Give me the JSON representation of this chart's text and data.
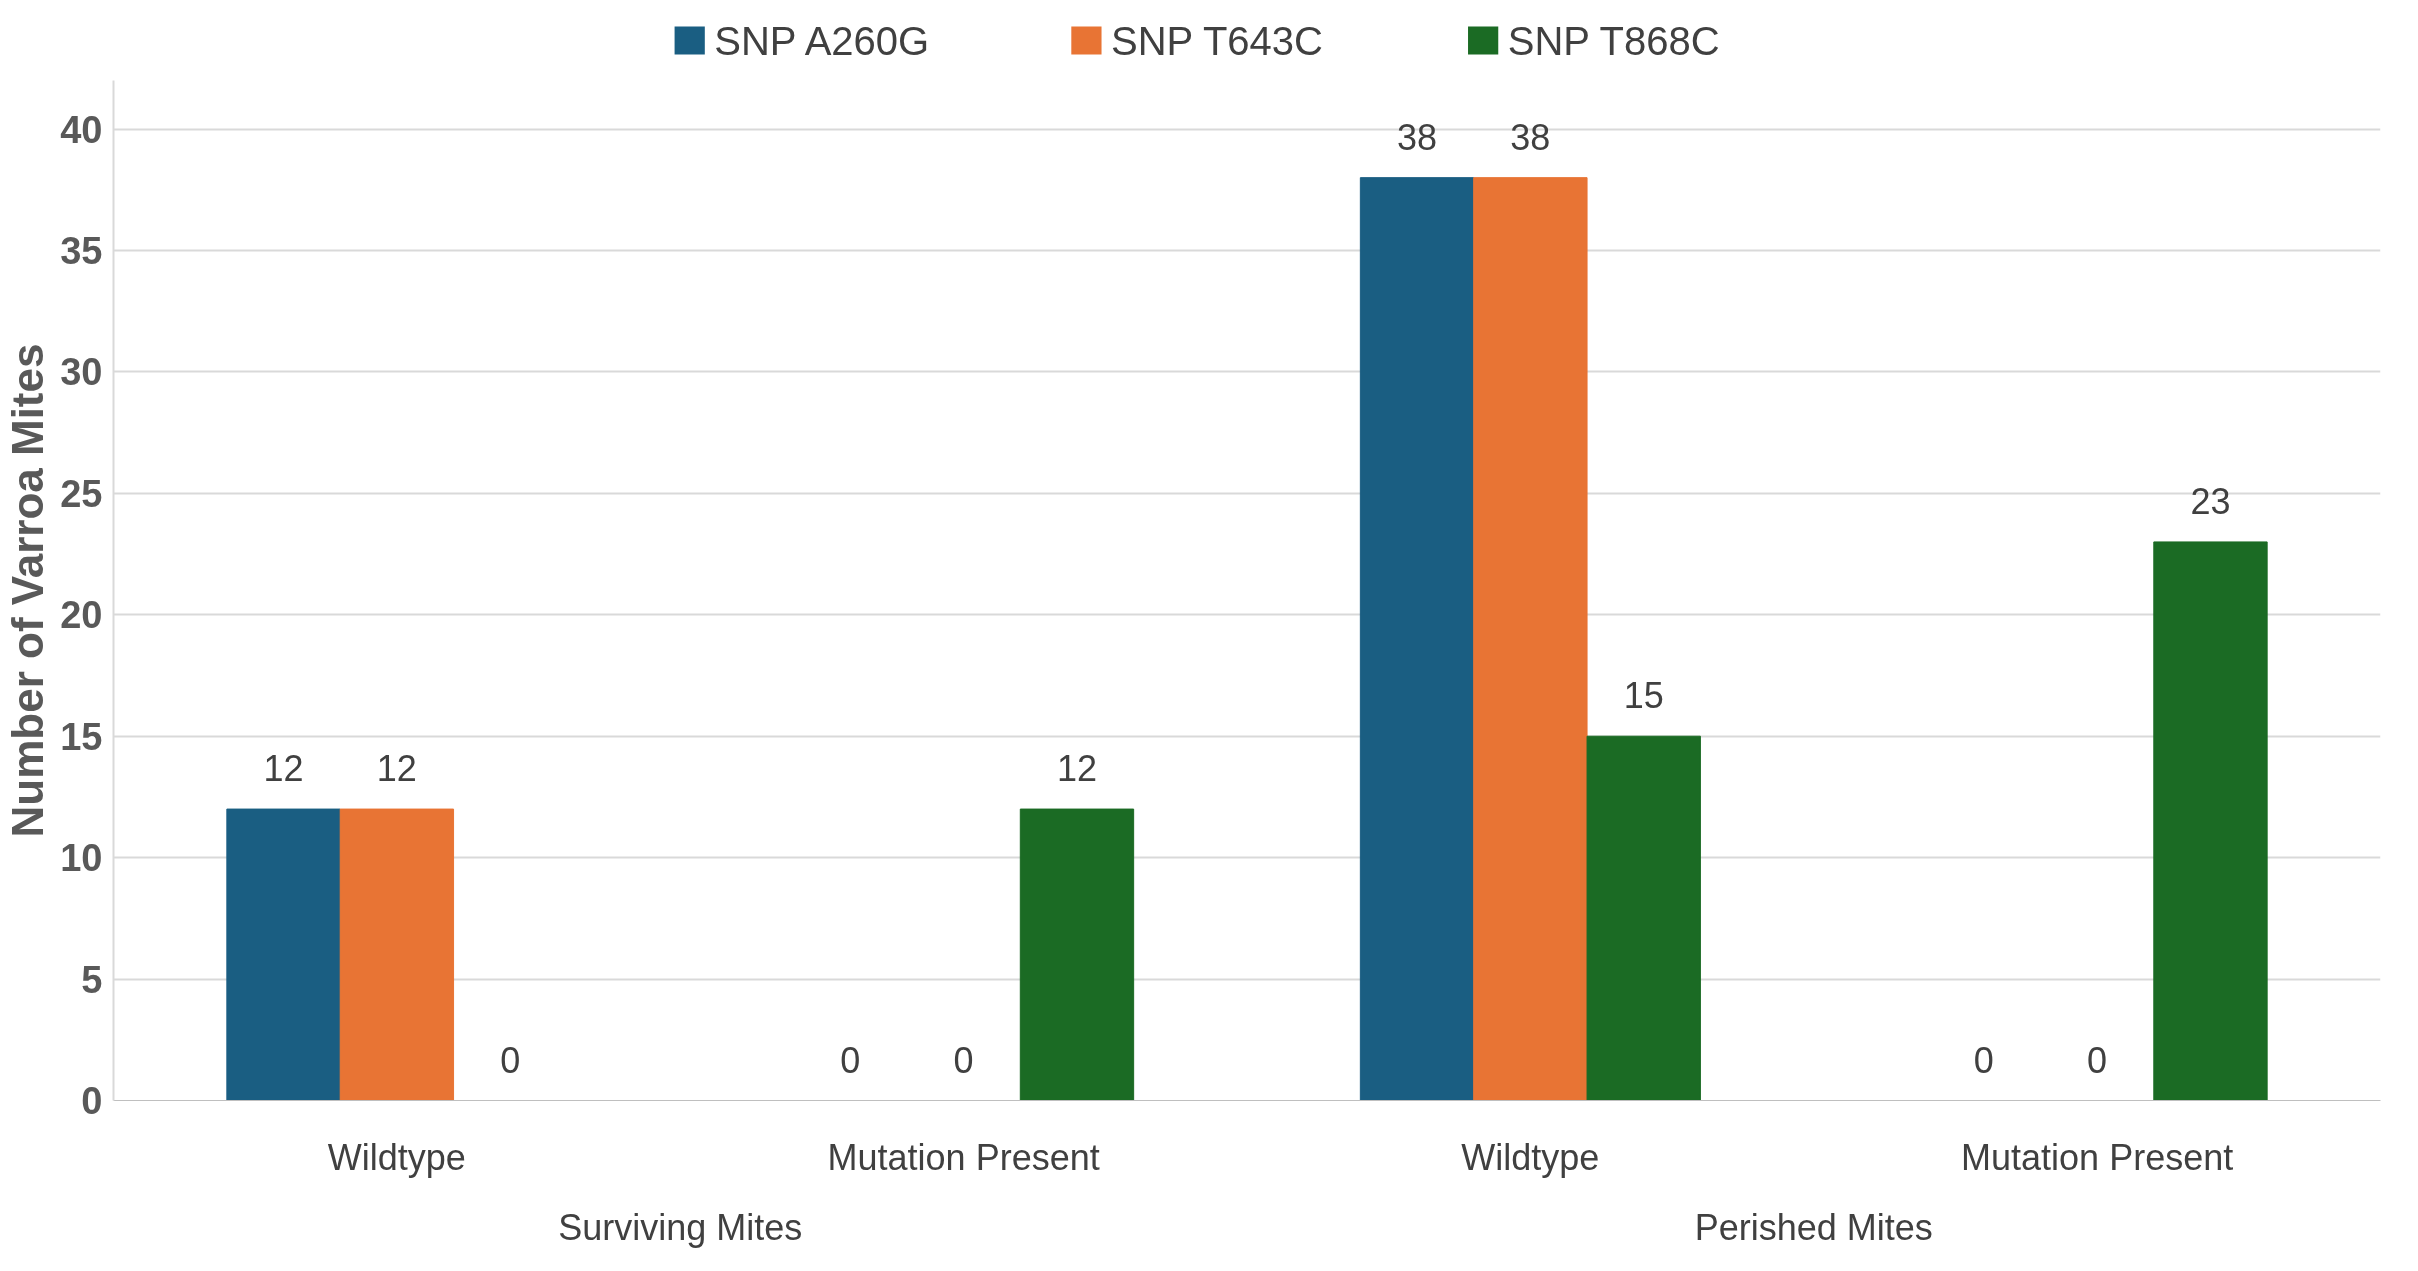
{
  "chart_data": {
    "type": "bar",
    "ylabel": "Number of Varroa Mites",
    "categories": [
      "Wildtype",
      "Mutation Present",
      "Wildtype",
      "Mutation Present"
    ],
    "series": [
      {
        "name": "SNP A260G",
        "color": "#1a5e82",
        "values": [
          12,
          0,
          38,
          0
        ]
      },
      {
        "name": "SNP T643C",
        "color": "#e87434",
        "values": [
          12,
          0,
          38,
          0
        ]
      },
      {
        "name": "SNP T868C",
        "color": "#1b6b24",
        "values": [
          0,
          12,
          15,
          23
        ]
      }
    ],
    "annotations": [
      "Surviving Mites",
      "Perished Mites"
    ],
    "ylim": [
      0,
      42
    ],
    "yticks": [
      0,
      5,
      10,
      15,
      20,
      25,
      30,
      35,
      40
    ],
    "grid": "y",
    "legend": "top",
    "data_labels": true
  }
}
